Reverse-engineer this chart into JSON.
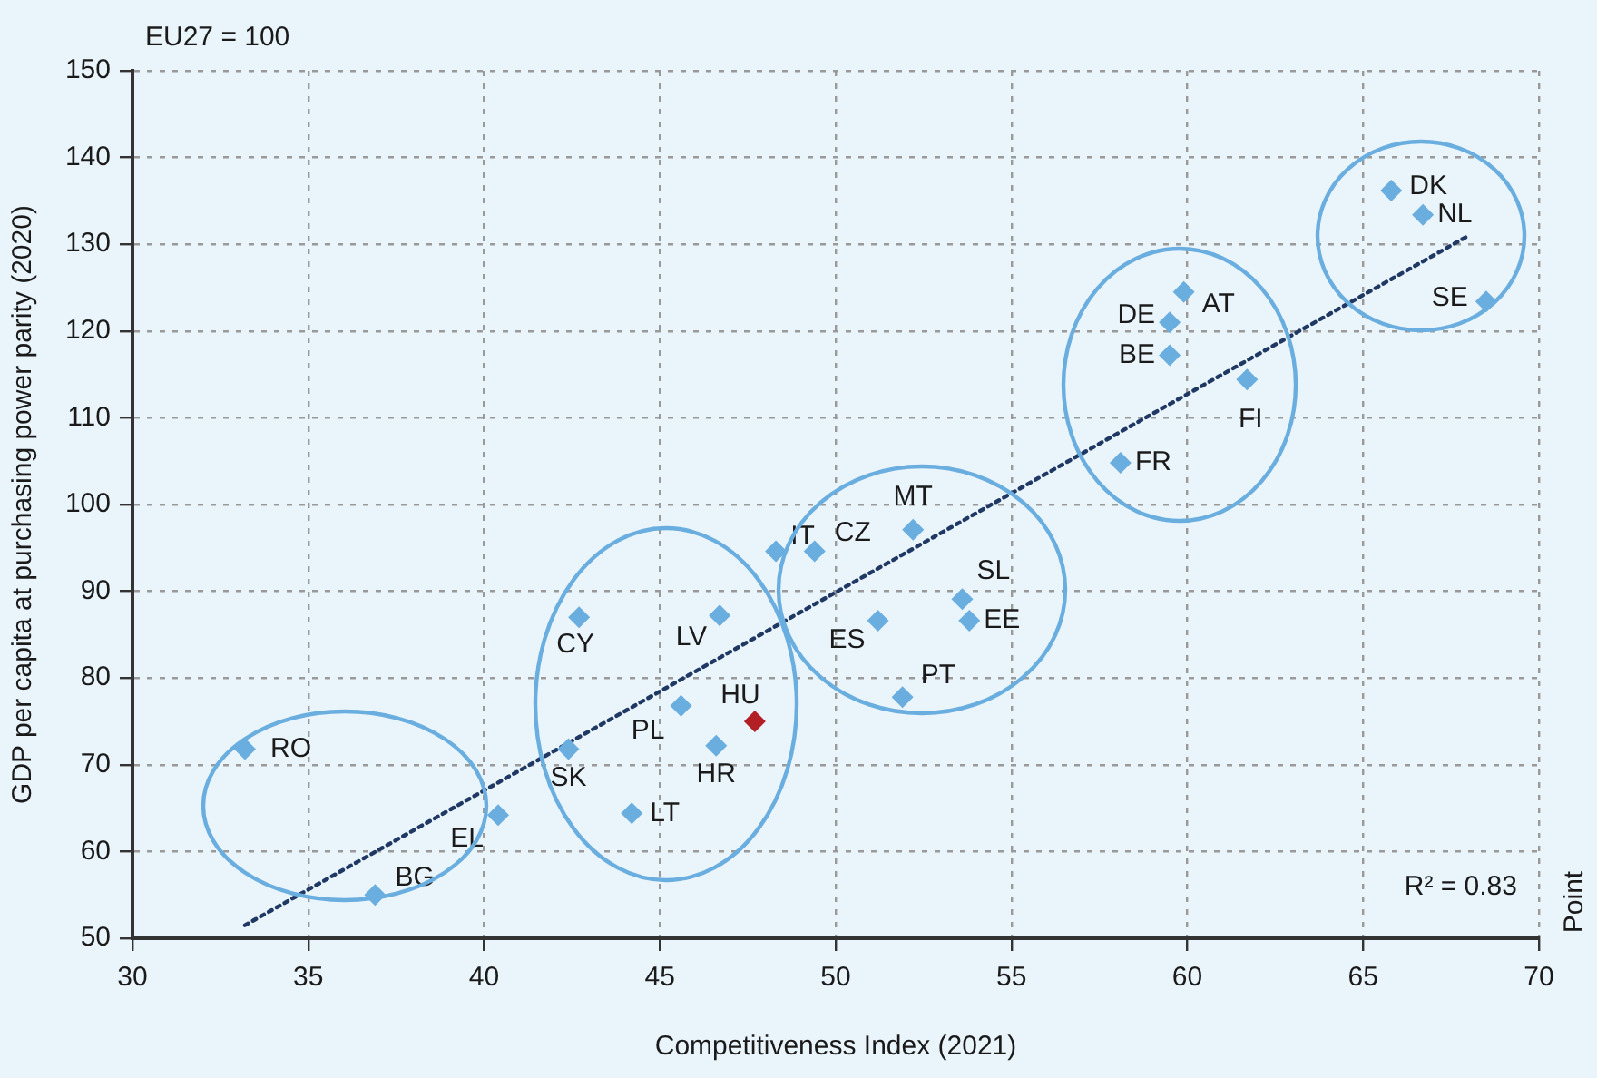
{
  "chart_data": {
    "type": "scatter",
    "xlabel": "Competitiveness Index (2021)",
    "ylabel": "GDP per capita at purchasing power parity (2020)",
    "xlim": [
      30,
      70
    ],
    "xticks": [
      30,
      35,
      40,
      45,
      50,
      55,
      60,
      65,
      70
    ],
    "ylim": [
      50,
      150
    ],
    "yticks": [
      50,
      60,
      70,
      80,
      90,
      100,
      110,
      120,
      130,
      140,
      150
    ],
    "grid": true,
    "legend": false,
    "marker": "diamond",
    "series": [
      {
        "x": [
          33.2,
          36.9,
          40.4,
          42.4,
          42.7,
          44.2,
          45.6,
          46.7,
          46.6,
          47.7,
          48.3,
          49.4,
          52.2,
          51.2,
          51.9,
          53.6,
          53.8,
          58.1,
          59.5,
          59.5,
          59.9,
          61.7,
          65.8,
          66.7,
          68.5
        ],
        "values": [
          71.8,
          55.0,
          64.2,
          71.8,
          87.0,
          64.4,
          76.8,
          87.2,
          72.2,
          75.0,
          94.6,
          94.6,
          97.1,
          86.6,
          77.8,
          89.1,
          86.6,
          104.8,
          117.2,
          121.0,
          124.5,
          114.4,
          136.2,
          133.4,
          123.4
        ],
        "colors": [
          "#6aaee0",
          "#6aaee0",
          "#6aaee0",
          "#6aaee0",
          "#6aaee0",
          "#6aaee0",
          "#6aaee0",
          "#6aaee0",
          "#6aaee0",
          "#b22025",
          "#6aaee0",
          "#6aaee0",
          "#6aaee0",
          "#6aaee0",
          "#6aaee0",
          "#6aaee0",
          "#6aaee0",
          "#6aaee0",
          "#6aaee0",
          "#6aaee0",
          "#6aaee0",
          "#6aaee0",
          "#6aaee0",
          "#6aaee0",
          "#6aaee0"
        ]
      },
      {
        "type": "line",
        "x": [
          33.2,
          68.0
        ],
        "values": [
          51.5,
          131.0
        ],
        "color": "#1f3864",
        "line_style": "dotted",
        "marker": "none"
      }
    ],
    "annotations": [
      {
        "text": "RO",
        "x": 33.2,
        "y": 71.8
      },
      {
        "text": "BG",
        "x": 36.9,
        "y": 55.0
      },
      {
        "text": "EL",
        "x": 40.4,
        "y": 64.2
      },
      {
        "text": "SK",
        "x": 42.4,
        "y": 71.8
      },
      {
        "text": "CY",
        "x": 42.7,
        "y": 87.0
      },
      {
        "text": "LT",
        "x": 44.2,
        "y": 64.4
      },
      {
        "text": "PL",
        "x": 45.6,
        "y": 76.8
      },
      {
        "text": "LV",
        "x": 46.7,
        "y": 87.2
      },
      {
        "text": "HR",
        "x": 46.6,
        "y": 72.2
      },
      {
        "text": "HU",
        "x": 47.7,
        "y": 75.0
      },
      {
        "text": "IT",
        "x": 48.3,
        "y": 94.6
      },
      {
        "text": "CZ",
        "x": 49.4,
        "y": 94.6
      },
      {
        "text": "MT",
        "x": 52.2,
        "y": 97.1
      },
      {
        "text": "ES",
        "x": 51.2,
        "y": 86.6
      },
      {
        "text": "PT",
        "x": 51.9,
        "y": 77.8
      },
      {
        "text": "SL",
        "x": 53.6,
        "y": 89.1
      },
      {
        "text": "EE",
        "x": 53.8,
        "y": 86.6
      },
      {
        "text": "FR",
        "x": 58.1,
        "y": 104.8
      },
      {
        "text": "BE",
        "x": 59.5,
        "y": 117.2
      },
      {
        "text": "DE",
        "x": 59.5,
        "y": 121.0
      },
      {
        "text": "AT",
        "x": 59.9,
        "y": 124.5
      },
      {
        "text": "FI",
        "x": 61.7,
        "y": 114.4
      },
      {
        "text": "DK",
        "x": 65.8,
        "y": 136.2
      },
      {
        "text": "NL",
        "x": 66.7,
        "y": 133.4
      },
      {
        "text": "SE",
        "x": 68.5,
        "y": 123.4
      },
      "EU27 = 100",
      "R² = 0.83",
      "Point"
    ]
  }
}
